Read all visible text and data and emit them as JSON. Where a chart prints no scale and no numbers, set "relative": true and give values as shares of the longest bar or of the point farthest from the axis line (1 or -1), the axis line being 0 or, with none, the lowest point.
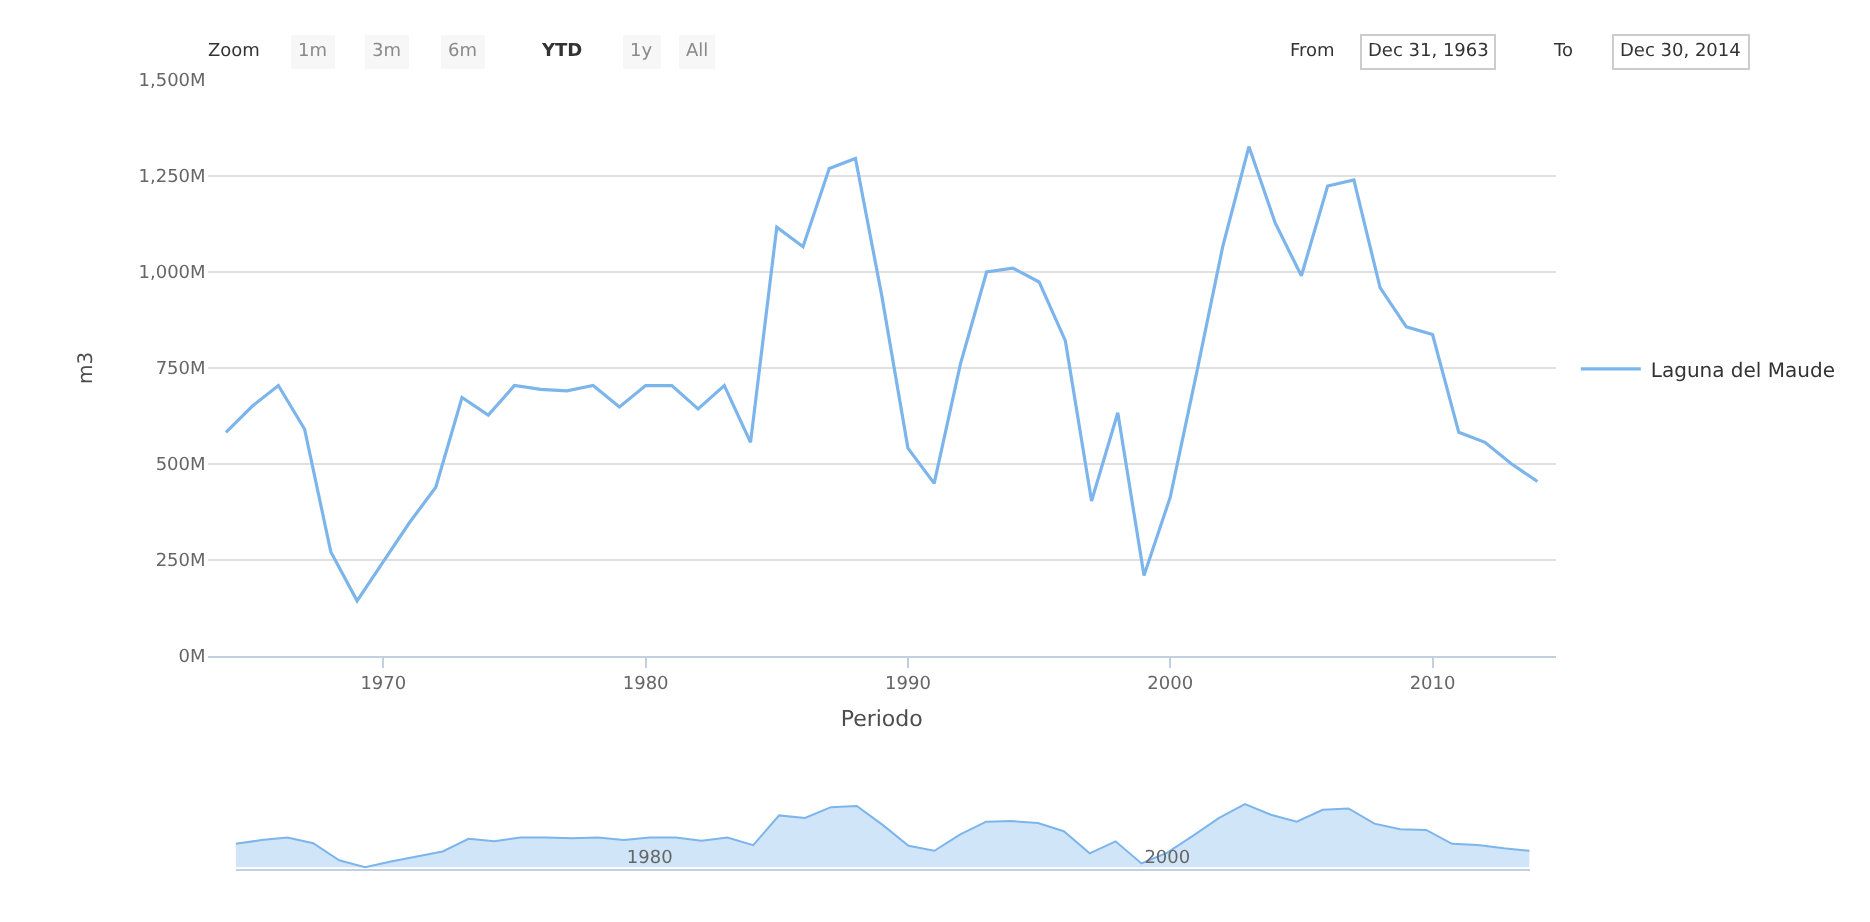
{
  "chart_data": [
    {
      "type": "line",
      "xlabel": "Periodo",
      "ylabel": "m3",
      "legend": "right",
      "grid": "y",
      "marker": "none",
      "line_style": "solid",
      "annotations": [
        "Zoom",
        "1m",
        "3m",
        "6m",
        "YTD",
        "1y",
        "All",
        "From",
        "Dec 31, 1963",
        "To",
        "Dec 30, 2014"
      ],
      "x": [
        1964,
        1965,
        1966,
        1967,
        1968,
        1969,
        1970,
        1971,
        1972,
        1973,
        1974,
        1975,
        1976,
        1977,
        1978,
        1979,
        1980,
        1981,
        1982,
        1983,
        1984,
        1985,
        1986,
        1987,
        1988,
        1989,
        1990,
        1991,
        1992,
        1993,
        1994,
        1995,
        1996,
        1997,
        1998,
        1999,
        2000,
        2001,
        2002,
        2003,
        2004,
        2005,
        2006,
        2007,
        2008,
        2009,
        2010,
        2011,
        2012,
        2013,
        2014
      ],
      "xlim": [
        1963.3,
        2014.7
      ],
      "xticks": [
        1970,
        1980,
        1990,
        2000,
        2010
      ],
      "ylim": [
        0,
        1500
      ],
      "yticks": [
        {
          "value": 0,
          "label": "0M"
        },
        {
          "value": 250,
          "label": "250M"
        },
        {
          "value": 500,
          "label": "500M"
        },
        {
          "value": 750,
          "label": "750M"
        },
        {
          "value": 1000,
          "label": "1,000M"
        },
        {
          "value": 1250,
          "label": "1,250M"
        },
        {
          "value": 1500,
          "label": "1,500M"
        }
      ],
      "series": [
        {
          "name": "Laguna del Maude",
          "color": "#7cb5ec",
          "values": [
            582,
            650,
            704,
            590,
            270,
            143,
            245,
            347,
            439,
            673,
            627,
            704,
            694,
            690,
            704,
            648,
            704,
            704,
            643,
            704,
            556,
            1117,
            1066,
            1270,
            1296,
            939,
            541,
            449,
            760,
            1000,
            1010,
            974,
            821,
            403,
            633,
            209,
            413,
            735,
            1066,
            1327,
            1128,
            990,
            1224,
            1240,
            959,
            857,
            837,
            582,
            556,
            500,
            454
          ]
        }
      ]
    },
    {
      "type": "area",
      "tick_labels": "x",
      "grid": false,
      "x": [
        1964,
        1965,
        1966,
        1967,
        1968,
        1969,
        1970,
        1971,
        1972,
        1973,
        1974,
        1975,
        1976,
        1977,
        1978,
        1979,
        1980,
        1981,
        1982,
        1983,
        1984,
        1985,
        1986,
        1987,
        1988,
        1989,
        1990,
        1991,
        1992,
        1993,
        1994,
        1995,
        1996,
        1997,
        1998,
        1999,
        2000,
        2001,
        2002,
        2003,
        2004,
        2005,
        2006,
        2007,
        2008,
        2009,
        2010,
        2011,
        2012,
        2013,
        2014
      ],
      "xlim": [
        1964,
        2014
      ],
      "xticks": [
        1980,
        2000
      ],
      "relative": true,
      "series": [
        {
          "color": "#7cb5ec",
          "values": [
            0.37,
            0.43,
            0.47,
            0.38,
            0.11,
            0,
            0.09,
            0.17,
            0.25,
            0.45,
            0.41,
            0.47,
            0.47,
            0.46,
            0.47,
            0.43,
            0.47,
            0.47,
            0.42,
            0.47,
            0.35,
            0.82,
            0.78,
            0.95,
            0.97,
            0.67,
            0.34,
            0.26,
            0.52,
            0.72,
            0.73,
            0.7,
            0.57,
            0.22,
            0.41,
            0.06,
            0.23,
            0.5,
            0.78,
            1,
            0.83,
            0.72,
            0.91,
            0.93,
            0.69,
            0.6,
            0.59,
            0.37,
            0.35,
            0.3,
            0.26
          ]
        }
      ]
    }
  ]
}
